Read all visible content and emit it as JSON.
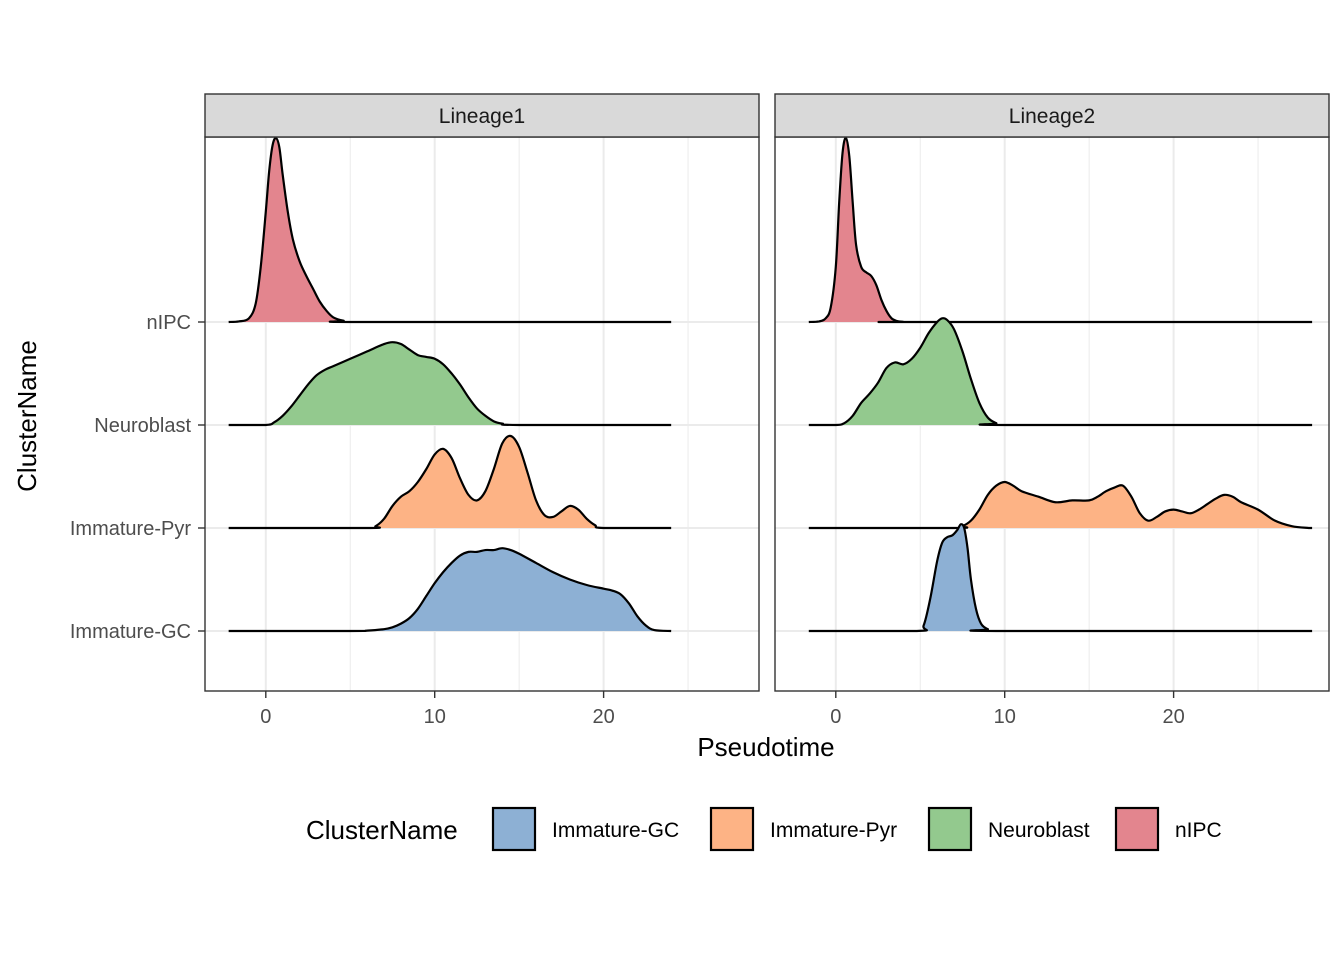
{
  "chart_data": {
    "type": "ridgeline",
    "xlabel": "Pseudotime",
    "ylabel": "ClusterName",
    "categories": [
      "Immature-GC",
      "Immature-Pyr",
      "Neuroblast",
      "nIPC"
    ],
    "legend": {
      "title": "ClusterName",
      "position": "bottom",
      "entries": [
        {
          "label": "Immature-GC",
          "color": "#8DB0D4"
        },
        {
          "label": "Immature-Pyr",
          "color": "#FDB385"
        },
        {
          "label": "Neuroblast",
          "color": "#93C98E"
        },
        {
          "label": "nIPC",
          "color": "#E3858E"
        }
      ]
    },
    "xlim": [
      -3.6,
      29.2
    ],
    "xticks": [
      "0",
      "10",
      "20"
    ],
    "tick_values": [
      0,
      10,
      20
    ],
    "panels": [
      {
        "strip": "Lineage1",
        "range": [
          -2.2,
          24
        ],
        "series": [
          {
            "name": "nIPC",
            "color": "#E3858E",
            "x": [
              -2.2,
              -1.6,
              -1.0,
              -0.6,
              -0.3,
              0.0,
              0.2,
              0.4,
              0.6,
              0.8,
              1.0,
              1.3,
              1.6,
              2.0,
              2.4,
              2.8,
              3.2,
              3.6,
              4.0,
              4.6,
              5.4,
              24
            ],
            "y": [
              0,
              0.003,
              0.02,
              0.1,
              0.3,
              0.6,
              0.82,
              0.96,
              1.0,
              0.95,
              0.8,
              0.6,
              0.45,
              0.33,
              0.25,
              0.18,
              0.11,
              0.06,
              0.025,
              0.007,
              0,
              0
            ]
          },
          {
            "name": "Neuroblast",
            "color": "#93C98E",
            "x": [
              -2.2,
              0,
              0.5,
              1.0,
              1.5,
              2.0,
              2.5,
              3.0,
              3.5,
              4.0,
              5.0,
              6.0,
              7.0,
              7.5,
              8.0,
              8.5,
              9.0,
              9.5,
              10.0,
              10.5,
              11.0,
              11.5,
              12.0,
              12.5,
              13.0,
              13.5,
              14.0,
              15.0,
              24
            ],
            "y": [
              0,
              0,
              0.015,
              0.05,
              0.1,
              0.16,
              0.22,
              0.27,
              0.3,
              0.32,
              0.36,
              0.4,
              0.44,
              0.45,
              0.44,
              0.41,
              0.38,
              0.37,
              0.36,
              0.33,
              0.28,
              0.22,
              0.15,
              0.09,
              0.05,
              0.02,
              0.008,
              0,
              0
            ]
          },
          {
            "name": "Immature-Pyr",
            "color": "#FDB385",
            "x": [
              -2.2,
              6.0,
              6.5,
              7.0,
              7.5,
              8.0,
              8.5,
              9.0,
              9.5,
              10.0,
              10.5,
              11.0,
              11.5,
              12.0,
              12.5,
              13.0,
              13.5,
              14.0,
              14.5,
              15.0,
              15.5,
              16.0,
              16.5,
              17.0,
              17.5,
              18.0,
              18.5,
              19.0,
              19.5,
              20.0,
              24
            ],
            "y": [
              0,
              0,
              0.01,
              0.05,
              0.12,
              0.17,
              0.2,
              0.25,
              0.32,
              0.4,
              0.43,
              0.38,
              0.27,
              0.18,
              0.15,
              0.2,
              0.32,
              0.46,
              0.5,
              0.44,
              0.3,
              0.15,
              0.07,
              0.06,
              0.09,
              0.12,
              0.1,
              0.05,
              0.015,
              0,
              0
            ]
          },
          {
            "name": "Immature-GC",
            "color": "#8DB0D4",
            "x": [
              -2.2,
              5.0,
              6.0,
              7.0,
              7.5,
              8.0,
              8.5,
              9.0,
              9.5,
              10.0,
              10.5,
              11.0,
              11.5,
              12.0,
              12.5,
              13.0,
              13.5,
              14.0,
              14.5,
              15.0,
              16.0,
              17.0,
              18.0,
              19.0,
              20.0,
              20.5,
              21.0,
              21.5,
              22.0,
              22.5,
              23.0,
              24
            ],
            "y": [
              0,
              0,
              0.002,
              0.01,
              0.02,
              0.04,
              0.07,
              0.12,
              0.19,
              0.26,
              0.32,
              0.37,
              0.41,
              0.43,
              0.43,
              0.44,
              0.44,
              0.45,
              0.44,
              0.42,
              0.37,
              0.32,
              0.28,
              0.25,
              0.23,
              0.22,
              0.2,
              0.15,
              0.08,
              0.03,
              0.005,
              0
            ]
          }
        ]
      },
      {
        "strip": "Lineage2",
        "range": [
          -1.6,
          28.2
        ],
        "series": [
          {
            "name": "nIPC",
            "color": "#E3858E",
            "x": [
              -1.6,
              -1.0,
              -0.6,
              -0.3,
              0.0,
              0.2,
              0.4,
              0.6,
              0.8,
              1.0,
              1.2,
              1.5,
              1.8,
              2.1,
              2.4,
              2.7,
              3.0,
              3.3,
              3.6,
              4.0,
              4.4,
              28.2
            ],
            "y": [
              0,
              0.003,
              0.02,
              0.08,
              0.3,
              0.65,
              0.92,
              1.0,
              0.9,
              0.65,
              0.42,
              0.3,
              0.27,
              0.25,
              0.2,
              0.12,
              0.06,
              0.02,
              0.006,
              0.001,
              0,
              0
            ]
          },
          {
            "name": "Neuroblast",
            "color": "#93C98E",
            "x": [
              -1.6,
              0.0,
              0.5,
              1.0,
              1.5,
              2.0,
              2.5,
              3.0,
              3.5,
              4.0,
              4.5,
              5.0,
              5.5,
              6.0,
              6.3,
              6.6,
              7.0,
              7.5,
              8.0,
              8.5,
              9.0,
              9.5,
              10.0,
              28.2
            ],
            "y": [
              0,
              0,
              0.01,
              0.05,
              0.12,
              0.17,
              0.23,
              0.31,
              0.34,
              0.33,
              0.36,
              0.42,
              0.5,
              0.56,
              0.58,
              0.57,
              0.52,
              0.4,
              0.25,
              0.12,
              0.04,
              0.01,
              0,
              0
            ]
          },
          {
            "name": "Immature-Pyr",
            "color": "#FDB385",
            "x": [
              -1.6,
              7.0,
              7.5,
              8.0,
              8.5,
              9.0,
              9.5,
              10.0,
              10.5,
              11.0,
              12.0,
              13.0,
              14.0,
              15.0,
              15.5,
              16.0,
              16.5,
              17.0,
              17.5,
              18.0,
              18.5,
              19.0,
              19.5,
              20.0,
              20.5,
              21.0,
              21.5,
              22.0,
              22.5,
              23.0,
              23.5,
              24.0,
              25.0,
              26.0,
              27.0,
              28.0,
              28.2
            ],
            "y": [
              0,
              0,
              0.01,
              0.04,
              0.1,
              0.18,
              0.23,
              0.25,
              0.23,
              0.2,
              0.17,
              0.14,
              0.15,
              0.15,
              0.17,
              0.2,
              0.22,
              0.23,
              0.17,
              0.08,
              0.04,
              0.06,
              0.09,
              0.1,
              0.09,
              0.08,
              0.1,
              0.13,
              0.16,
              0.18,
              0.17,
              0.14,
              0.1,
              0.04,
              0.01,
              0,
              0
            ]
          },
          {
            "name": "Immature-GC",
            "color": "#8DB0D4",
            "x": [
              -1.6,
              4.8,
              5.2,
              5.6,
              6.0,
              6.3,
              6.6,
              6.9,
              7.2,
              7.4,
              7.6,
              7.8,
              8.0,
              8.3,
              8.6,
              9.0,
              9.5,
              28.2
            ],
            "y": [
              0,
              0,
              0.03,
              0.18,
              0.38,
              0.48,
              0.51,
              0.52,
              0.55,
              0.58,
              0.56,
              0.45,
              0.28,
              0.12,
              0.04,
              0.01,
              0,
              0
            ]
          }
        ]
      }
    ]
  }
}
